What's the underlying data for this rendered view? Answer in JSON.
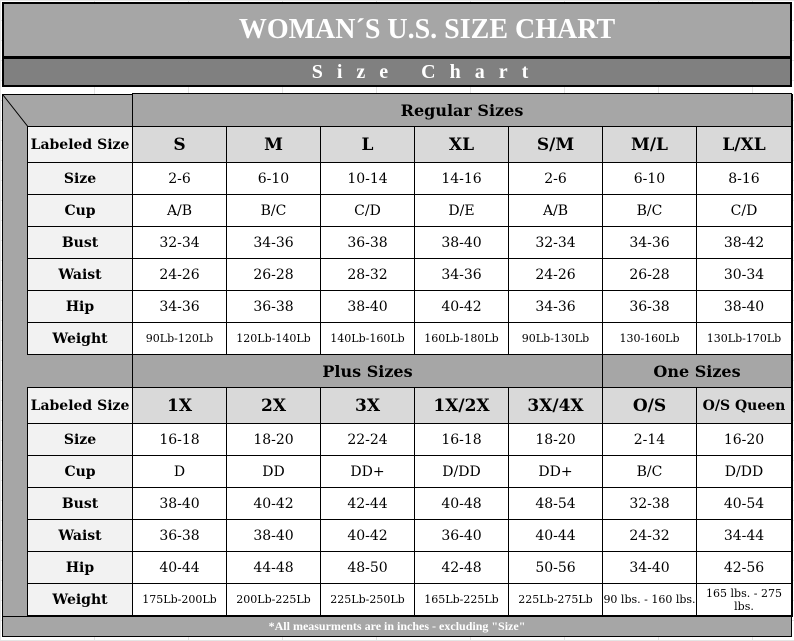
{
  "title": "WOMAN´S  U.S. SIZE CHART",
  "subtitle": "Size Chart",
  "row_labels": [
    "Size",
    "Cup",
    "Bust",
    "Waist",
    "Hip",
    "Weight"
  ],
  "labeled_size": "Labeled Size",
  "regular": {
    "group_label": "Regular Sizes",
    "columns": [
      {
        "label": "S",
        "values": [
          "2-6",
          "A/B",
          "32-34",
          "24-26",
          "34-36",
          "90Lb-120Lb"
        ]
      },
      {
        "label": "M",
        "values": [
          "6-10",
          "B/C",
          "34-36",
          "26-28",
          "36-38",
          "120Lb-140Lb"
        ]
      },
      {
        "label": "L",
        "values": [
          "10-14",
          "C/D",
          "36-38",
          "28-32",
          "38-40",
          "140Lb-160Lb"
        ]
      },
      {
        "label": "XL",
        "values": [
          "14-16",
          "D/E",
          "38-40",
          "34-36",
          "40-42",
          "160Lb-180Lb"
        ]
      },
      {
        "label": "S/M",
        "values": [
          "2-6",
          "A/B",
          "32-34",
          "24-26",
          "34-36",
          "90Lb-130Lb"
        ]
      },
      {
        "label": "M/L",
        "values": [
          "6-10",
          "B/C",
          "34-36",
          "26-28",
          "36-38",
          "130-160Lb"
        ]
      },
      {
        "label": "L/XL",
        "values": [
          "8-16",
          "C/D",
          "38-42",
          "30-34",
          "38-40",
          "130Lb-170Lb"
        ]
      }
    ]
  },
  "plus": {
    "group_label": "Plus Sizes",
    "one_group_label": "One Sizes",
    "columns": [
      {
        "label": "1X",
        "values": [
          "16-18",
          "D",
          "38-40",
          "36-38",
          "40-44",
          "175Lb-200Lb"
        ]
      },
      {
        "label": "2X",
        "values": [
          "18-20",
          "DD",
          "40-42",
          "38-40",
          "44-48",
          "200Lb-225Lb"
        ]
      },
      {
        "label": "3X",
        "values": [
          "22-24",
          "DD+",
          "42-44",
          "40-42",
          "48-50",
          "225Lb-250Lb"
        ]
      },
      {
        "label": "1X/2X",
        "values": [
          "16-18",
          "D/DD",
          "40-48",
          "36-40",
          "42-48",
          "165Lb-225Lb"
        ]
      },
      {
        "label": "3X/4X",
        "values": [
          "18-20",
          "DD+",
          "48-54",
          "40-44",
          "50-56",
          "225Lb-275Lb"
        ]
      },
      {
        "label": "O/S",
        "values": [
          "2-14",
          "B/C",
          "32-38",
          "24-32",
          "34-40",
          "90 lbs. - 160 lbs."
        ]
      },
      {
        "label": "O/S Queen",
        "values": [
          "16-20",
          "D/DD",
          "40-54",
          "34-44",
          "42-56",
          "165 lbs. - 275 lbs."
        ]
      }
    ]
  },
  "footer": "*All measurments are in inches - excluding \"Size\""
}
